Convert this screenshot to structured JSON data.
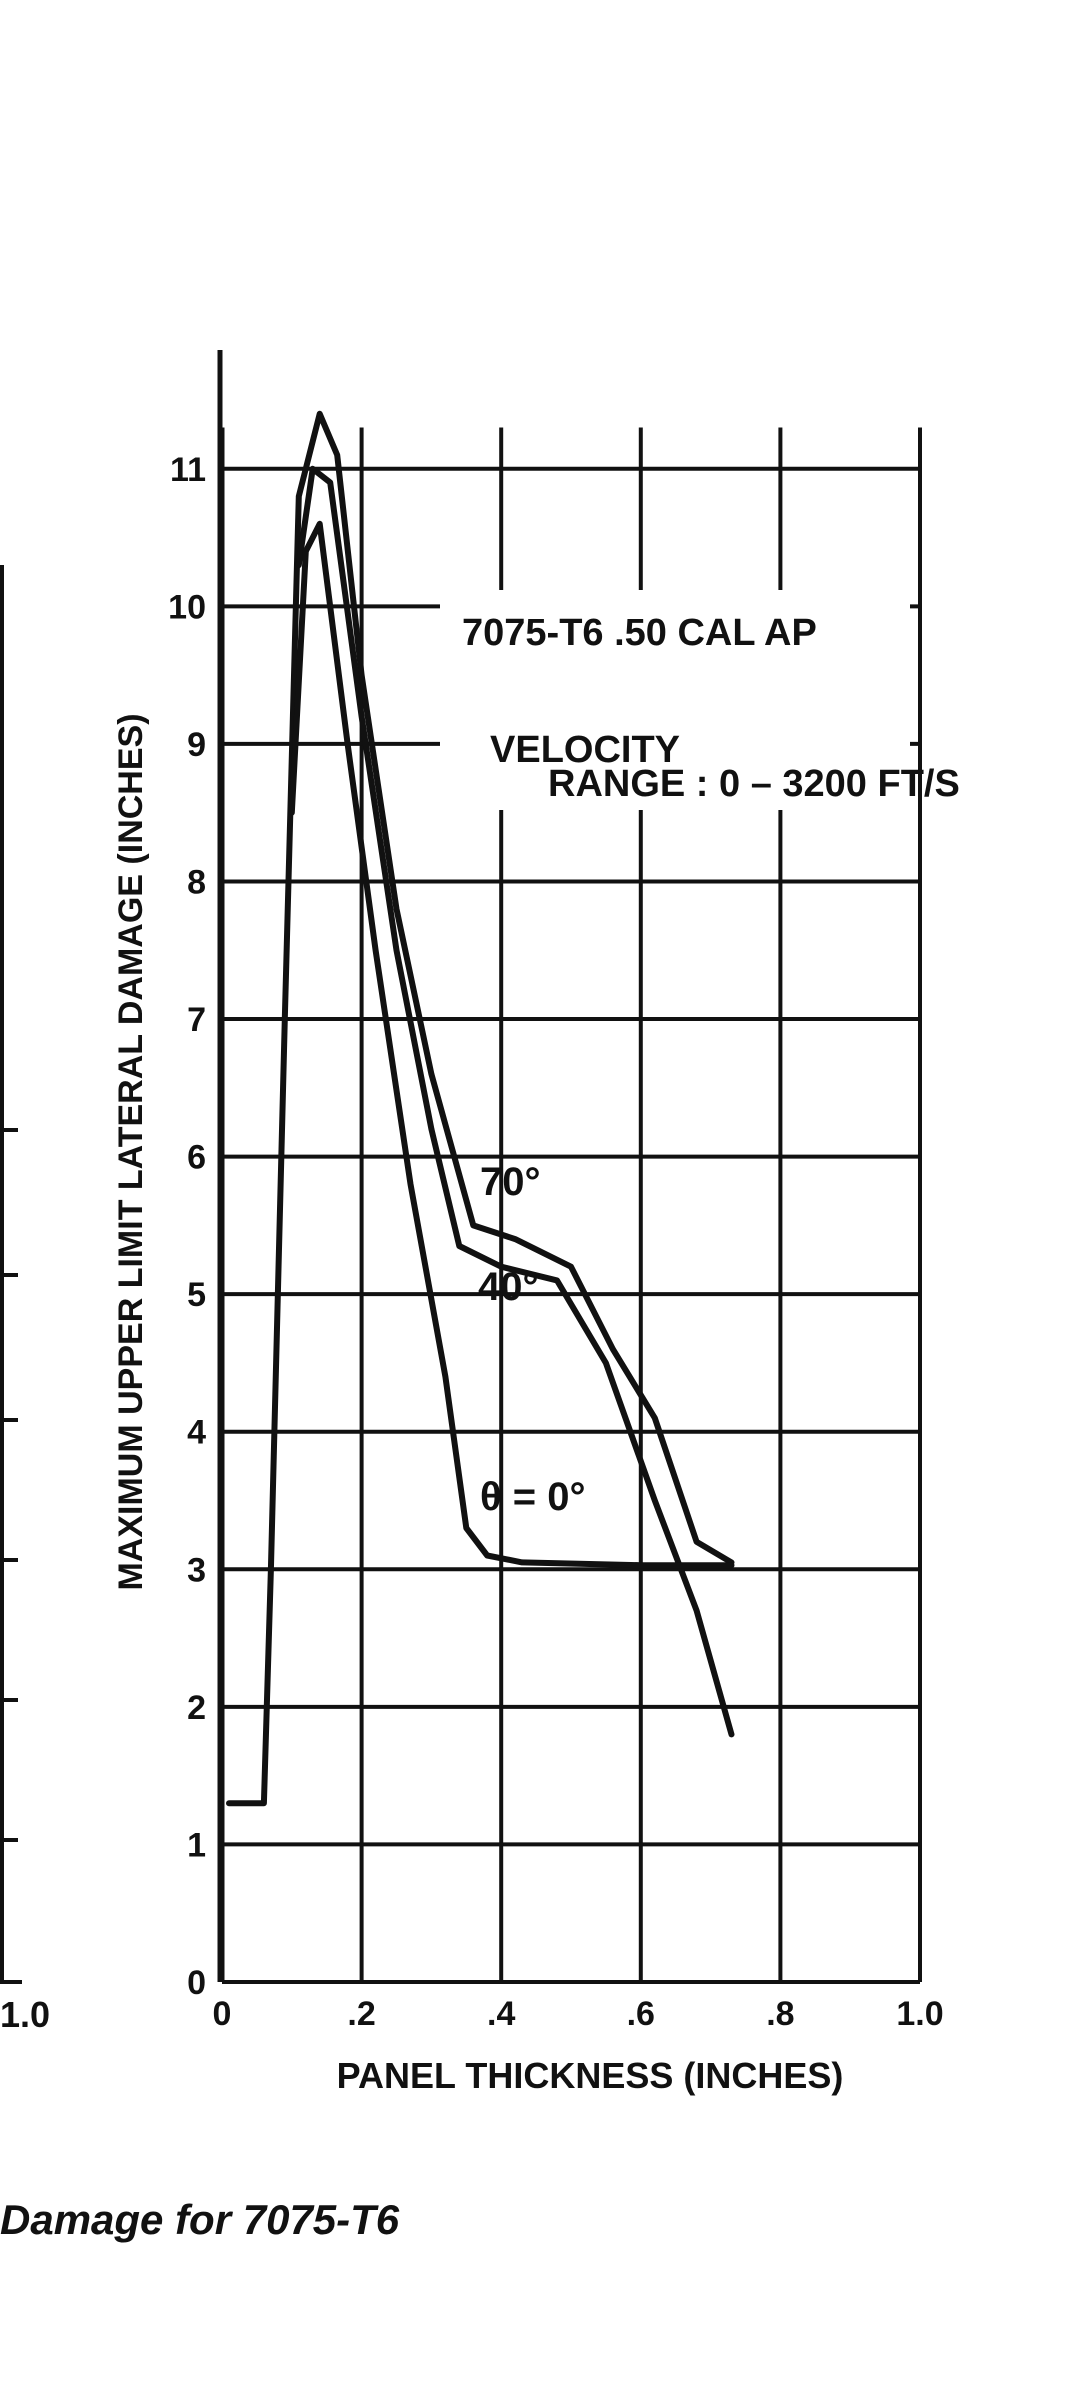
{
  "chart_data": {
    "type": "line",
    "annotation_title": "7075-T6 .50 CAL AP",
    "annotation_velocity_line1": "VELOCITY",
    "annotation_velocity_line2": "RANGE : 0 – 3200 FT/S",
    "xlabel": "PANEL THICKNESS (INCHES)",
    "ylabel": "MAXIMUM UPPER LIMIT LATERAL DAMAGE (INCHES)",
    "xlim": [
      0,
      1.0
    ],
    "ylim": [
      0,
      11.5
    ],
    "x_ticks": [
      {
        "v": 0,
        "label": "0"
      },
      {
        "v": 0.2,
        "label": ".2"
      },
      {
        "v": 0.4,
        "label": ".4"
      },
      {
        "v": 0.6,
        "label": ".6"
      },
      {
        "v": 0.8,
        "label": ".8"
      },
      {
        "v": 1.0,
        "label": "1.0"
      }
    ],
    "y_ticks": [
      {
        "v": 0,
        "label": "0"
      },
      {
        "v": 1,
        "label": "1"
      },
      {
        "v": 2,
        "label": "2"
      },
      {
        "v": 3,
        "label": "3"
      },
      {
        "v": 4,
        "label": "4"
      },
      {
        "v": 5,
        "label": "5"
      },
      {
        "v": 6,
        "label": "6"
      },
      {
        "v": 7,
        "label": "7"
      },
      {
        "v": 8,
        "label": "8"
      },
      {
        "v": 9,
        "label": "9"
      },
      {
        "v": 10,
        "label": "10"
      },
      {
        "v": 11,
        "label": "11"
      }
    ],
    "grid": true,
    "series": [
      {
        "name": "70°",
        "points": [
          [
            0.01,
            1.3
          ],
          [
            0.06,
            1.3
          ],
          [
            0.07,
            3
          ],
          [
            0.09,
            7
          ],
          [
            0.11,
            10.8
          ],
          [
            0.14,
            11.4
          ],
          [
            0.165,
            11.1
          ],
          [
            0.2,
            9.5
          ],
          [
            0.25,
            7.8
          ],
          [
            0.3,
            6.6
          ],
          [
            0.36,
            5.5
          ],
          [
            0.42,
            5.4
          ],
          [
            0.5,
            5.2
          ],
          [
            0.56,
            4.6
          ],
          [
            0.62,
            4.1
          ],
          [
            0.68,
            3.2
          ],
          [
            0.73,
            3.05
          ]
        ]
      },
      {
        "name": "40°",
        "points": [
          [
            0.11,
            10.3
          ],
          [
            0.13,
            11.0
          ],
          [
            0.155,
            10.9
          ],
          [
            0.2,
            9.2
          ],
          [
            0.25,
            7.5
          ],
          [
            0.3,
            6.2
          ],
          [
            0.34,
            5.35
          ],
          [
            0.4,
            5.2
          ],
          [
            0.48,
            5.1
          ],
          [
            0.55,
            4.5
          ],
          [
            0.62,
            3.5
          ],
          [
            0.68,
            2.7
          ],
          [
            0.73,
            1.8
          ]
        ]
      },
      {
        "name": "θ = 0°",
        "points": [
          [
            0.1,
            8.5
          ],
          [
            0.12,
            10.4
          ],
          [
            0.14,
            10.6
          ],
          [
            0.18,
            9.0
          ],
          [
            0.22,
            7.5
          ],
          [
            0.27,
            5.8
          ],
          [
            0.32,
            4.4
          ],
          [
            0.35,
            3.3
          ],
          [
            0.38,
            3.1
          ],
          [
            0.43,
            3.05
          ],
          [
            0.6,
            3.03
          ],
          [
            0.73,
            3.03
          ]
        ]
      }
    ]
  },
  "series_labels": {
    "label_70": "70°",
    "label_40": "40°",
    "label_0": "θ = 0°"
  },
  "caption": "Damage for 7075-T6",
  "left_partial_tick": "1.0"
}
